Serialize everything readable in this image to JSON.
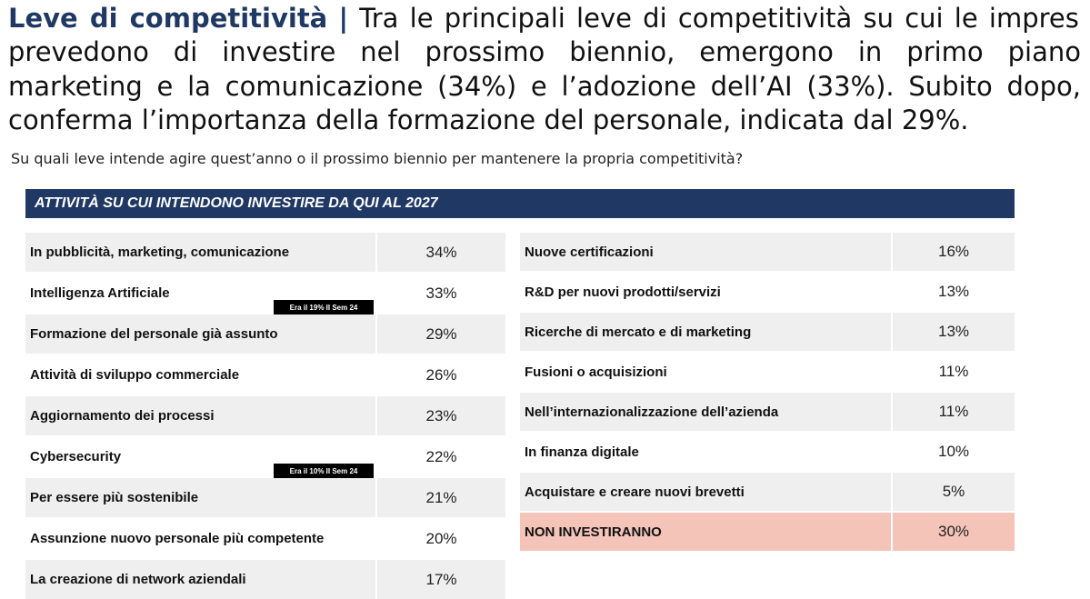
{
  "header": {
    "title": "Leve di competitività",
    "separator": "|",
    "lines": [
      "Tra le principali leve di competitività su cui le impres",
      "prevedono di investire nel prossimo biennio, emergono in primo piano",
      "marketing e la comunicazione (34%) e l’adozione dell’AI (33%). Subito dopo,",
      "conferma l’importanza della formazione del personale, indicata dal 29%."
    ]
  },
  "question": "Su quali leve intende agire quest’anno o il prossimo biennio per mantenere la propria competitività?",
  "table": {
    "title": "ATTIVITÀ SU CUI INTENDONO INVESTIRE DA QUI AL 2027",
    "left": [
      [
        "In pubblicità, marketing, comunicazione",
        "34%"
      ],
      [
        "Intelligenza Artificiale",
        "33%",
        "Era il 19% II Sem 24"
      ],
      [
        "Formazione del personale già assunto",
        "29%"
      ],
      [
        "Attività di sviluppo commerciale",
        "26%"
      ],
      [
        "Aggiornamento dei processi",
        "23%"
      ],
      [
        "Cybersecurity",
        "22%",
        "Era il 10% II Sem 24"
      ],
      [
        "Per essere più sostenibile",
        "21%"
      ],
      [
        "Assunzione nuovo personale più competente",
        "20%"
      ],
      [
        "La creazione di network aziendali",
        "17%"
      ]
    ],
    "right": [
      [
        "Nuove certificazioni",
        "16%"
      ],
      [
        "R&D per nuovi prodotti/servizi",
        "13%"
      ],
      [
        "Ricerche di mercato e di marketing",
        "13%"
      ],
      [
        "Fusioni o acquisizioni",
        "11%"
      ],
      [
        "Nell’internazionalizzazione dell’azienda",
        "11%"
      ],
      [
        "In finanza digitale",
        "10%"
      ],
      [
        "Acquistare e creare nuovi brevetti",
        "5%"
      ],
      [
        "NON INVESTIRANNO",
        "30%"
      ]
    ]
  }
}
